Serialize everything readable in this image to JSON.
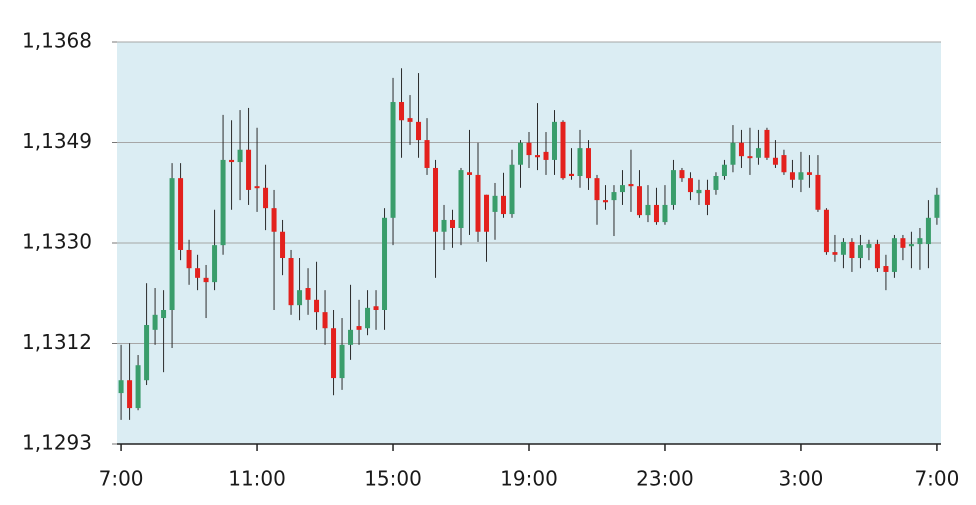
{
  "chart_data": {
    "type": "candlestick",
    "up_color": "#3a9d6b",
    "down_color": "#e3211d",
    "background": "#dbedf3",
    "grid": true,
    "xlim": [
      -0.12,
      24.12
    ],
    "xticks": [
      {
        "value": 0,
        "label": "7:00"
      },
      {
        "value": 4,
        "label": "11:00"
      },
      {
        "value": 8,
        "label": "15:00"
      },
      {
        "value": 12,
        "label": "19:00"
      },
      {
        "value": 16,
        "label": "23:00"
      },
      {
        "value": 20,
        "label": "3:00"
      },
      {
        "value": 24,
        "label": "7:00"
      }
    ],
    "ylim": [
      1.1293,
      1.1368
    ],
    "yticks": [
      {
        "value": 1.1293,
        "label": "1,1293"
      },
      {
        "value": 1.131175,
        "label": "1,1312"
      },
      {
        "value": 1.13305,
        "label": "1,1330"
      },
      {
        "value": 1.134925,
        "label": "1,1349"
      },
      {
        "value": 1.1368,
        "label": "1,1368"
      }
    ],
    "x": [
      0,
      0.25,
      0.5,
      0.75,
      1,
      1.25,
      1.5,
      1.75,
      2,
      2.25,
      2.5,
      2.75,
      3,
      3.25,
      3.5,
      3.75,
      4,
      4.25,
      4.5,
      4.75,
      5,
      5.25,
      5.5,
      5.75,
      6,
      6.25,
      6.5,
      6.75,
      7,
      7.25,
      7.5,
      7.75,
      8,
      8.25,
      8.5,
      8.75,
      9,
      9.25,
      9.5,
      9.75,
      10,
      10.25,
      10.5,
      10.75,
      11,
      11.25,
      11.5,
      11.75,
      12,
      12.25,
      12.5,
      12.75,
      13,
      13.25,
      13.5,
      13.75,
      14,
      14.25,
      14.5,
      14.75,
      15,
      15.25,
      15.5,
      15.75,
      16,
      16.25,
      16.5,
      16.75,
      17,
      17.25,
      17.5,
      17.75,
      18,
      18.25,
      18.5,
      18.75,
      19,
      19.25,
      19.5,
      19.75,
      20,
      20.25,
      20.5,
      20.75,
      21,
      21.25,
      21.5,
      21.75,
      22,
      22.25,
      22.5,
      22.75,
      23,
      23.25,
      23.5,
      23.75,
      24
    ],
    "open": [
      1.13025,
      1.13049,
      1.12997,
      1.13049,
      1.13143,
      1.13165,
      1.1318,
      1.13426,
      1.13292,
      1.13258,
      1.1324,
      1.13232,
      1.13301,
      1.1346,
      1.13456,
      1.13479,
      1.13411,
      1.13408,
      1.1337,
      1.13326,
      1.13277,
      1.13189,
      1.13221,
      1.13199,
      1.13176,
      1.13146,
      1.13053,
      1.13115,
      1.1315,
      1.13146,
      1.13187,
      1.1318,
      1.13352,
      1.13568,
      1.13538,
      1.13531,
      1.13497,
      1.13445,
      1.13326,
      1.13348,
      1.13333,
      1.13437,
      1.13432,
      1.13395,
      1.13363,
      1.13393,
      1.13359,
      1.13451,
      1.13492,
      1.13469,
      1.13475,
      1.1346,
      1.13531,
      1.13434,
      1.1343,
      1.13482,
      1.13426,
      1.13385,
      1.13385,
      1.134,
      1.13415,
      1.13411,
      1.13357,
      1.13376,
      1.13344,
      1.13376,
      1.13441,
      1.13426,
      1.13398,
      1.13404,
      1.13404,
      1.1343,
      1.13451,
      1.13492,
      1.13467,
      1.13464,
      1.13516,
      1.13464,
      1.13469,
      1.13437,
      1.13423,
      1.13437,
      1.13432,
      1.13367,
      1.13288,
      1.13283,
      1.13307,
      1.13277,
      1.13296,
      1.13303,
      1.13262,
      1.13251,
      1.13314,
      1.13299,
      1.13303,
      1.13303,
      1.13352
    ],
    "high": [
      1.13115,
      1.13118,
      1.13096,
      1.1323,
      1.13221,
      1.13217,
      1.13454,
      1.13454,
      1.13311,
      1.13283,
      1.13264,
      1.13367,
      1.13544,
      1.13534,
      1.13553,
      1.13557,
      1.1352,
      1.13451,
      1.13404,
      1.13348,
      1.13292,
      1.13277,
      1.13258,
      1.1327,
      1.13217,
      1.1318,
      1.13165,
      1.13227,
      1.13199,
      1.13217,
      1.13217,
      1.1337,
      1.13613,
      1.13631,
      1.13581,
      1.13622,
      1.13538,
      1.1346,
      1.13376,
      1.13367,
      1.13445,
      1.13516,
      1.13492,
      1.13395,
      1.13417,
      1.13436,
      1.13479,
      1.13497,
      1.13512,
      1.13566,
      1.13512,
      1.13553,
      1.13534,
      1.13482,
      1.13516,
      1.13497,
      1.13432,
      1.13413,
      1.13413,
      1.13441,
      1.13479,
      1.13441,
      1.13413,
      1.13408,
      1.13413,
      1.1346,
      1.13445,
      1.13437,
      1.13423,
      1.13423,
      1.13437,
      1.1346,
      1.13525,
      1.13516,
      1.1352,
      1.13516,
      1.1352,
      1.13497,
      1.13479,
      1.1346,
      1.13475,
      1.13469,
      1.13469,
      1.1337,
      1.1332,
      1.13314,
      1.13314,
      1.1332,
      1.13311,
      1.13311,
      1.13283,
      1.1332,
      1.1332,
      1.13326,
      1.13333,
      1.13385,
      1.13408
    ],
    "low": [
      1.12975,
      1.12975,
      1.12993,
      1.1304,
      1.13115,
      1.13064,
      1.13109,
      1.13273,
      1.13227,
      1.13217,
      1.13165,
      1.13217,
      1.13283,
      1.13367,
      1.13385,
      1.13376,
      1.13363,
      1.13329,
      1.1318,
      1.13245,
      1.13171,
      1.13161,
      1.13171,
      1.13143,
      1.13115,
      1.13021,
      1.13031,
      1.13087,
      1.13115,
      1.13133,
      1.13143,
      1.13143,
      1.13301,
      1.13464,
      1.13488,
      1.13464,
      1.13432,
      1.1324,
      1.13292,
      1.13296,
      1.13301,
      1.1332,
      1.13307,
      1.1327,
      1.13311,
      1.13352,
      1.13352,
      1.13408,
      1.13445,
      1.13441,
      1.13432,
      1.13432,
      1.13423,
      1.13423,
      1.13408,
      1.13404,
      1.13339,
      1.13367,
      1.13318,
      1.13376,
      1.13363,
      1.13352,
      1.13344,
      1.13339,
      1.13339,
      1.13367,
      1.13419,
      1.13385,
      1.13376,
      1.13357,
      1.13395,
      1.13423,
      1.13437,
      1.13445,
      1.13432,
      1.13451,
      1.1346,
      1.13445,
      1.13432,
      1.13408,
      1.134,
      1.13408,
      1.13363,
      1.13283,
      1.1327,
      1.13258,
      1.13251,
      1.13258,
      1.13273,
      1.13251,
      1.13217,
      1.1324,
      1.13273,
      1.13258,
      1.13255,
      1.13258,
      1.13339
    ],
    "close": [
      1.13049,
      1.12997,
      1.13077,
      1.13152,
      1.13171,
      1.1318,
      1.13426,
      1.13292,
      1.13258,
      1.1324,
      1.13232,
      1.13301,
      1.1346,
      1.13456,
      1.13479,
      1.13404,
      1.13408,
      1.1337,
      1.13326,
      1.13277,
      1.13189,
      1.13217,
      1.13199,
      1.13176,
      1.13146,
      1.13053,
      1.13115,
      1.13143,
      1.13143,
      1.13184,
      1.1318,
      1.13352,
      1.13568,
      1.13534,
      1.13531,
      1.13497,
      1.13445,
      1.13326,
      1.13348,
      1.13333,
      1.13441,
      1.13432,
      1.13326,
      1.13326,
      1.13393,
      1.13359,
      1.13451,
      1.13492,
      1.13469,
      1.13465,
      1.1346,
      1.13531,
      1.13426,
      1.1343,
      1.13482,
      1.13426,
      1.13385,
      1.13381,
      1.134,
      1.13413,
      1.13411,
      1.13357,
      1.13376,
      1.13344,
      1.13376,
      1.13441,
      1.13426,
      1.134,
      1.13404,
      1.13376,
      1.1343,
      1.13451,
      1.13492,
      1.13467,
      1.13464,
      1.13482,
      1.13464,
      1.13451,
      1.13437,
      1.13423,
      1.13437,
      1.13432,
      1.13367,
      1.13288,
      1.13283,
      1.13307,
      1.13277,
      1.13301,
      1.13303,
      1.13258,
      1.13251,
      1.13314,
      1.13296,
      1.13303,
      1.13314,
      1.13352,
      1.13395
    ]
  }
}
